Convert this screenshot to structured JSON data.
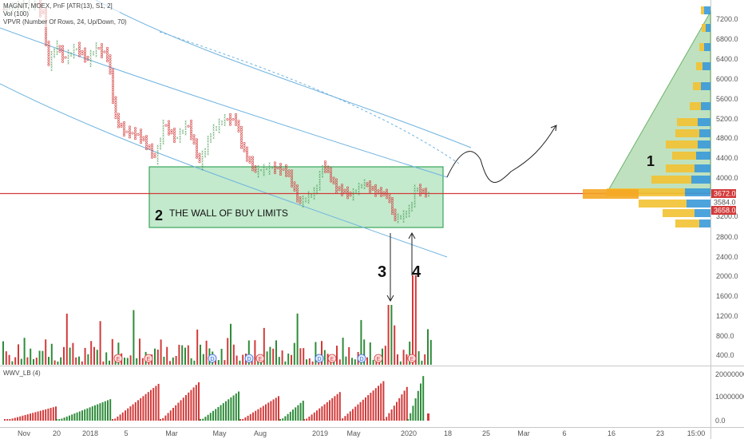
{
  "legend": {
    "symbol_line": "MAGNIT, MOEX, PnF [ATR(13), S1, 2]",
    "vol_line": "Vol (100)",
    "vpvr_line": "VPVR (Number Of Rows, 24, Up/Down, 70)"
  },
  "osc_legend": "WWV_LB (4)",
  "price_axis": [
    "7200.0",
    "6800.0",
    "6400.0",
    "6000.0",
    "5600.0",
    "5200.0",
    "4800.0",
    "4400.0",
    "4000.0",
    "2800.0",
    "2400.0",
    "2000.0",
    "1600.0",
    "1200.0",
    "800.0",
    "400.0"
  ],
  "price_axis_low": "3200.0",
  "osc_axis": [
    "20000000.0",
    "10000000.0",
    "0.0"
  ],
  "time_axis": [
    "Nov",
    "20",
    "2018",
    "5",
    "Mar",
    "May",
    "Aug",
    "2019",
    "May",
    "2020",
    "18",
    "25",
    "Mar",
    "6",
    "16",
    "23",
    "15:00"
  ],
  "price_tags": {
    "current": "3672.0",
    "tag2": "3584.0",
    "tag3": "3658.0"
  },
  "annotations": {
    "n1": "1",
    "n2": "2",
    "n3": "3",
    "n4": "4",
    "wall_text": "THE WALL OF BUY LIMITS"
  },
  "volume_markers": [
    "E",
    "D",
    "E",
    "D",
    "E",
    "D",
    "E",
    "E",
    "E",
    "D"
  ],
  "colors": {
    "up": "#2e8b3a",
    "down": "#d23a3a",
    "channel": "#6fb3e0",
    "wall_fill": "#b8e6c4",
    "wall_border": "#3aa55a",
    "hline": "#d23a3a",
    "triangle": "#8cc98a",
    "vp_blue": "#3a9ad9",
    "vp_yellow": "#f2c232"
  },
  "chart_data": [
    {
      "type": "point-and-figure",
      "title": "",
      "ylabel": "",
      "y_axis_ticks": [
        7200,
        6800,
        6400,
        6000,
        5600,
        5200,
        4800,
        4400,
        4000,
        3200,
        2800,
        2400,
        2000,
        1600,
        1200,
        800,
        400
      ],
      "current_price": 3672.0,
      "key_level": 3672.0,
      "buy_wall_zone": [
        2800,
        4200
      ],
      "price_path_approx": [
        {
          "x": "Nov",
          "y": 7000
        },
        {
          "x": "20",
          "y": 6200
        },
        {
          "x": "2018",
          "y": 6600
        },
        {
          "x": "5",
          "y": 5000
        },
        {
          "x": "Mar",
          "y": 4600
        },
        {
          "x": "May",
          "y": 5200
        },
        {
          "x": "Aug",
          "y": 4100
        },
        {
          "x": "2019",
          "y": 3800
        },
        {
          "x": "May",
          "y": 3500
        },
        {
          "x": "2020",
          "y": 3100
        },
        {
          "x": "2020",
          "y": 3700
        }
      ]
    },
    {
      "type": "bar",
      "title": "",
      "series": [
        {
          "values": []
        }
      ]
    },
    {
      "type": "bar",
      "title": "",
      "ylim": [
        0,
        22000000
      ]
    }
  ]
}
